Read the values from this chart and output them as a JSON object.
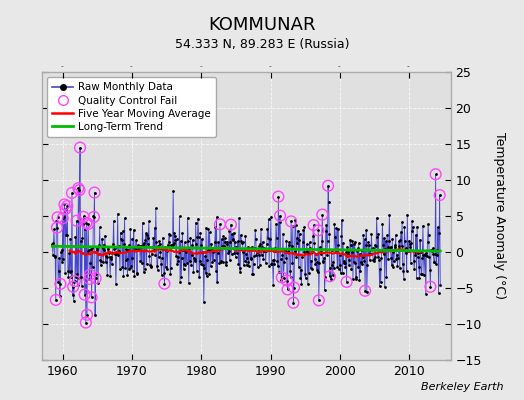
{
  "title": "KOMMUNAR",
  "subtitle": "54.333 N, 89.283 E (Russia)",
  "ylabel": "Temperature Anomaly (°C)",
  "credit": "Berkeley Earth",
  "xlim": [
    1957,
    2016
  ],
  "ylim": [
    -15,
    25
  ],
  "yticks": [
    -15,
    -10,
    -5,
    0,
    5,
    10,
    15,
    20,
    25
  ],
  "xticks": [
    1960,
    1970,
    1980,
    1990,
    2000,
    2010
  ],
  "bg_color": "#e8e8e8",
  "plot_bg_color": "#e0e0e0",
  "seed": 42,
  "n_months": 672,
  "start_year": 1958.5
}
